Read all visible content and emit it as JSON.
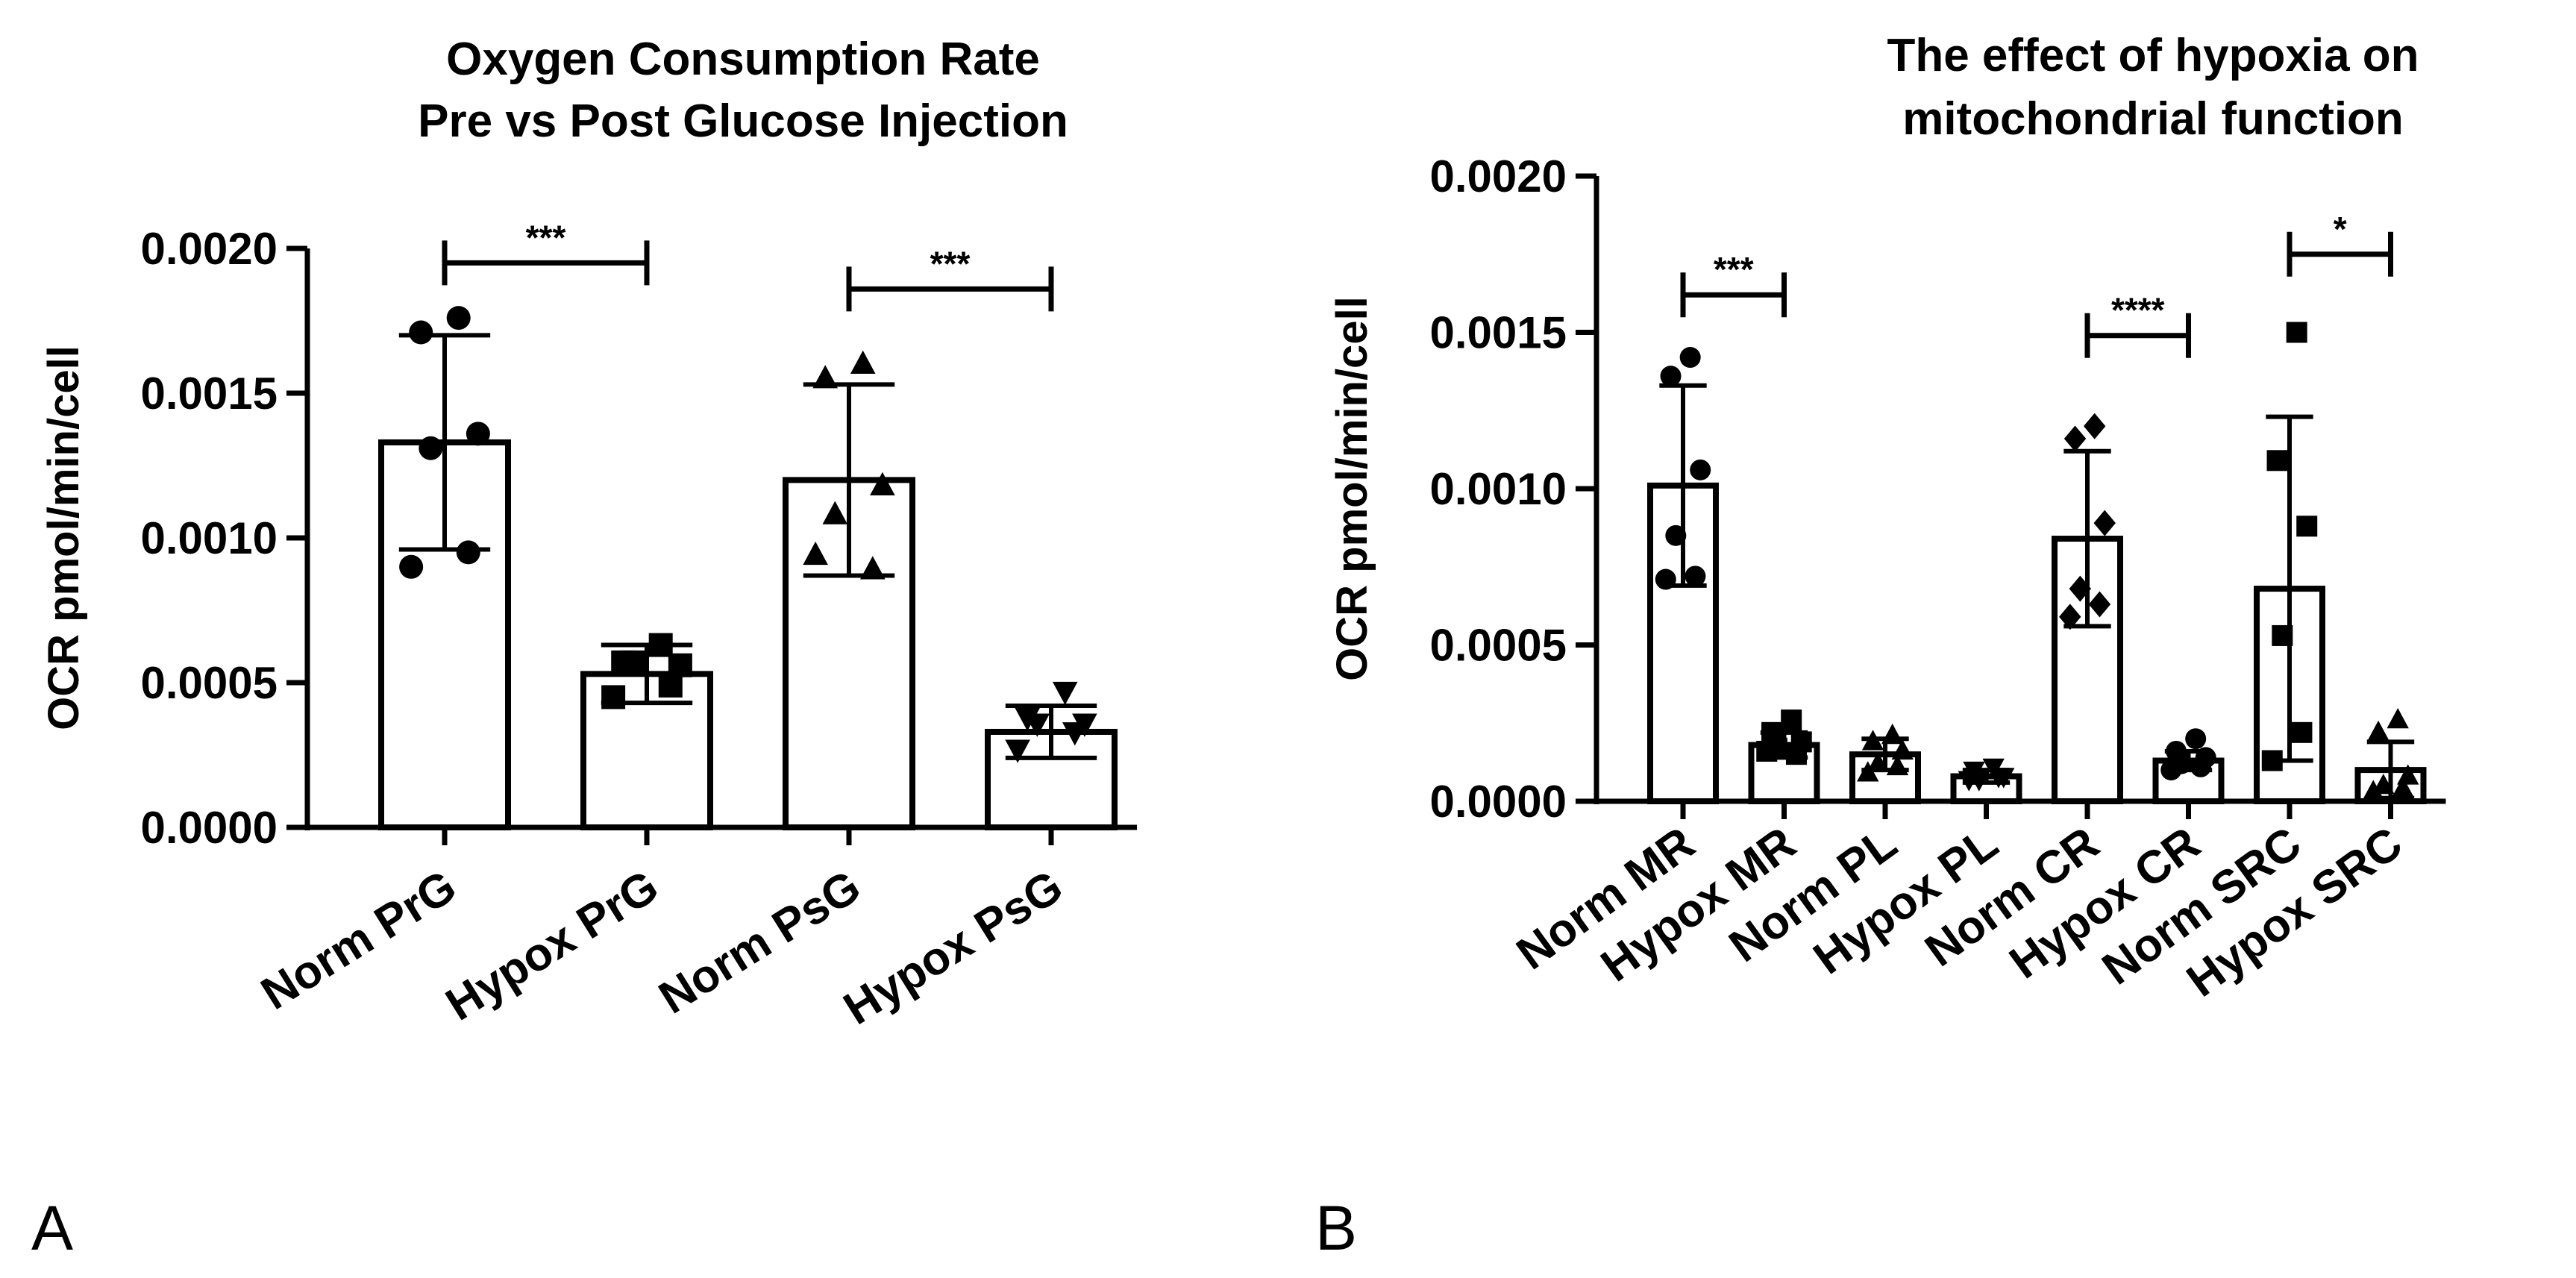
{
  "chart_data": [
    {
      "type": "bar",
      "panel_label": "A",
      "title_lines": [
        "Oxygen Consumption Rate",
        "Pre vs Post Glucose Injection"
      ],
      "ylabel": "OCR pmol/min/cell",
      "ylim": [
        0,
        0.002
      ],
      "yticks": [
        "0.0000",
        "0.0005",
        "0.0010",
        "0.0015",
        "0.0020"
      ],
      "categories": [
        "Norm PrG",
        "Hypox PrG",
        "Norm PsG",
        "Hypox PsG"
      ],
      "values": [
        0.00133,
        0.00053,
        0.0012,
        0.00033
      ],
      "errors": [
        0.00037,
        0.0001,
        0.00033,
        9e-05
      ],
      "markers": [
        "circle",
        "square",
        "triangle",
        "triangle-down"
      ],
      "points": [
        [
          0.00176,
          0.00171,
          0.00136,
          0.00131,
          0.00095,
          0.0009
        ],
        [
          0.00063,
          0.00057,
          0.00056,
          0.00057,
          0.00049,
          0.00045
        ],
        [
          0.0016,
          0.00155,
          0.00118,
          0.00108,
          0.00089,
          0.00094
        ],
        [
          0.00047,
          0.00038,
          0.00036,
          0.00036,
          0.00033,
          0.00027
        ]
      ],
      "significance": [
        {
          "from": 0,
          "to": 1,
          "label": "***",
          "y": 0.00195
        },
        {
          "from": 2,
          "to": 3,
          "label": "***",
          "y": 0.00186
        }
      ]
    },
    {
      "type": "bar",
      "panel_label": "B",
      "title_lines": [
        "The effect of hypoxia on",
        "mitochondrial function"
      ],
      "ylabel": "OCR pmol/min/cell",
      "ylim": [
        0,
        0.002
      ],
      "yticks": [
        "0.0000",
        "0.0005",
        "0.0010",
        "0.0015",
        "0.0020"
      ],
      "categories": [
        "Norm MR",
        "Hypox MR",
        "Norm PL",
        "Hypox PL",
        "Norm CR",
        "Hypox CR",
        "Norm SRC",
        "Hypox SRC"
      ],
      "values": [
        0.00101,
        0.00018,
        0.00015,
        8e-05,
        0.00084,
        0.00013,
        0.00068,
        0.0001
      ],
      "errors": [
        0.00032,
        4e-05,
        5e-05,
        2e-05,
        0.00028,
        3e-05,
        0.00055,
        9e-05
      ],
      "markers": [
        "circle",
        "square",
        "triangle",
        "triangle-down",
        "diamond",
        "circle",
        "square",
        "triangle"
      ],
      "points": [
        [
          0.00142,
          0.00136,
          0.00106,
          0.00085,
          0.00072,
          0.00071
        ],
        [
          0.00026,
          0.00022,
          0.00019,
          0.00017,
          0.00015,
          0.00016
        ],
        [
          0.00021,
          0.00019,
          0.00016,
          0.00012,
          0.00011,
          9e-05
        ],
        [
          0.00011,
          0.0001,
          8e-05,
          7e-05,
          8e-05,
          7e-05
        ],
        [
          0.0012,
          0.00116,
          0.00089,
          0.00068,
          0.00063,
          0.00059
        ],
        [
          0.0002,
          0.00016,
          0.00014,
          0.00012,
          0.00011,
          0.0001
        ],
        [
          0.0015,
          0.00109,
          0.00088,
          0.00053,
          0.00022,
          0.00013
        ],
        [
          0.00026,
          0.00022,
          8e-05,
          5e-05,
          4e-05,
          3e-05
        ]
      ],
      "significance": [
        {
          "from": 0,
          "to": 1,
          "label": "***",
          "y": 0.00162
        },
        {
          "from": 4,
          "to": 5,
          "label": "****",
          "y": 0.00149
        },
        {
          "from": 6,
          "to": 7,
          "label": "*",
          "y": 0.00175
        }
      ]
    }
  ]
}
